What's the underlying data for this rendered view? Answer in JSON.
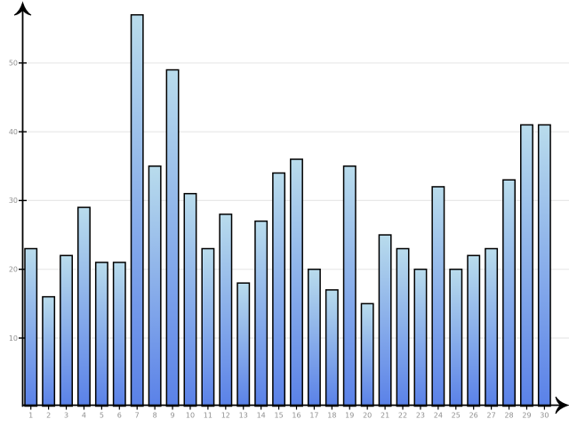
{
  "chart_data": {
    "type": "bar",
    "title": "",
    "xlabel": "",
    "ylabel": "",
    "categories": [
      "1",
      "2",
      "3",
      "4",
      "5",
      "6",
      "7",
      "8",
      "9",
      "10",
      "11",
      "12",
      "13",
      "14",
      "15",
      "16",
      "17",
      "18",
      "19",
      "20",
      "21",
      "22",
      "23",
      "24",
      "25",
      "26",
      "27",
      "28",
      "29",
      "30"
    ],
    "values": [
      23,
      16,
      22,
      29,
      21,
      21,
      57,
      35,
      49,
      31,
      23,
      28,
      18,
      27,
      34,
      36,
      20,
      17,
      35,
      15,
      25,
      23,
      20,
      32,
      20,
      22,
      23,
      33,
      41,
      41
    ],
    "ylim": [
      0,
      58
    ],
    "y_ticks": [
      10,
      20,
      30,
      40,
      50
    ],
    "grid": true,
    "legend": false,
    "axes_arrows": true,
    "colors": {
      "bar_gradient_top": "#b9dcec",
      "bar_gradient_bottom": "#5a81e8",
      "bar_border": "#000000",
      "gridline": "#e8e8e8",
      "tick_label": "#909090",
      "axis": "#000000",
      "background": "#ffffff"
    }
  }
}
